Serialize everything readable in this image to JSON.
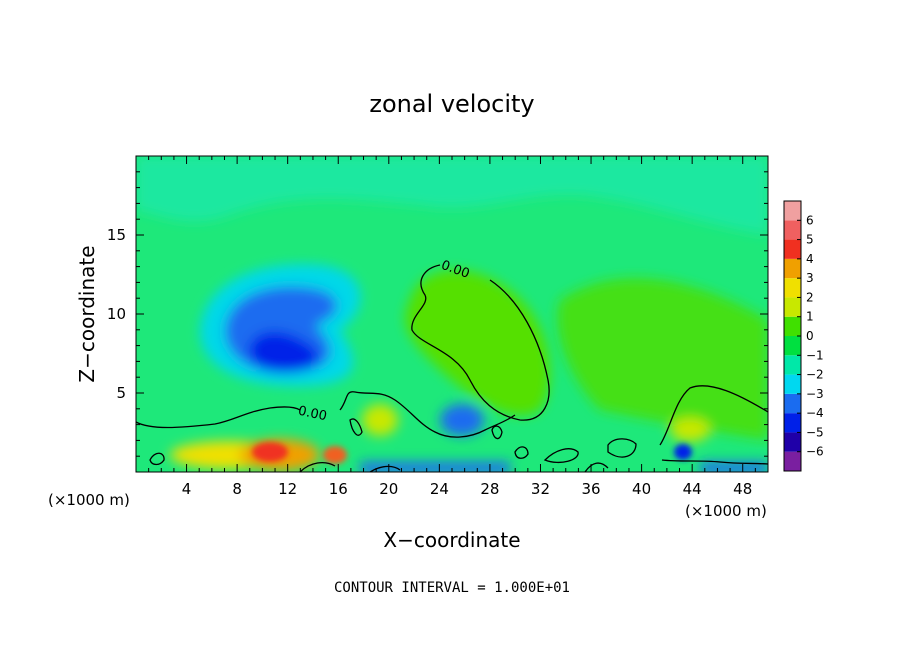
{
  "chart_data": {
    "type": "heatmap",
    "title": "zonal velocity",
    "xlabel": "X−coordinate",
    "ylabel": "Z−coordinate",
    "x_unit_left": "(×1000 m)",
    "x_unit_right": "(×1000 m)",
    "xlim": [
      0,
      50
    ],
    "ylim": [
      0,
      20
    ],
    "x_ticks": [
      4,
      8,
      12,
      16,
      20,
      24,
      28,
      32,
      36,
      40,
      44,
      48
    ],
    "y_ticks": [
      5,
      10,
      15
    ],
    "x_tick_labels": [
      "4",
      "8",
      "12",
      "16",
      "20",
      "24",
      "28",
      "32",
      "36",
      "40",
      "44",
      "48"
    ],
    "y_tick_labels": [
      "5",
      "10",
      "15"
    ],
    "footer": "CONTOUR INTERVAL = 1.000E+01",
    "contour_label": "0.00",
    "colorbar": {
      "levels": [
        -6,
        -5,
        -4,
        -3,
        -2,
        -1,
        0,
        1,
        2,
        3,
        4,
        5,
        6
      ],
      "labels": [
        "6",
        "5",
        "4",
        "3",
        "2",
        "1",
        "0",
        "−1",
        "−2",
        "−3",
        "−4",
        "−5",
        "−6"
      ],
      "colors": [
        "#7a1fa0",
        "#1f00a8",
        "#0020e8",
        "#1a6cf0",
        "#00d8f0",
        "#00e8a8",
        "#00e040",
        "#40e000",
        "#c8e800",
        "#f0e000",
        "#f0a000",
        "#f03020",
        "#f06060",
        "#f0a0a0"
      ]
    },
    "background_value_color": "#1ee87a"
  }
}
